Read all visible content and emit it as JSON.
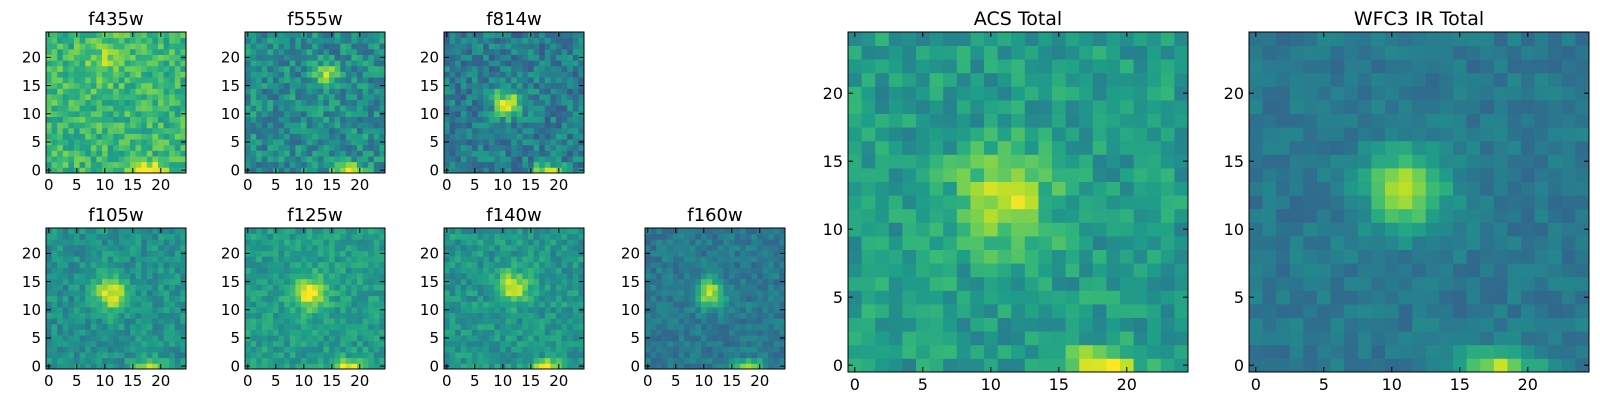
{
  "chart_data": [
    {
      "type": "heatmap",
      "title": "f435w",
      "peak": [
        10,
        20
      ],
      "spread": 3.0,
      "peak_strength": 0.15,
      "base": 0.66,
      "noise": 0.28,
      "xlim": [
        0,
        24
      ],
      "ylim": [
        0,
        24
      ],
      "xticks": [
        {
          "v": 0,
          "label": "0"
        },
        {
          "v": 5,
          "label": "5"
        },
        {
          "v": 10,
          "label": "10"
        },
        {
          "v": 15,
          "label": "15"
        },
        {
          "v": 20,
          "label": "20"
        }
      ],
      "yticks": [
        {
          "v": 0,
          "label": "0"
        },
        {
          "v": 5,
          "label": "5"
        },
        {
          "v": 10,
          "label": "10"
        },
        {
          "v": 15,
          "label": "15"
        },
        {
          "v": 20,
          "label": "20"
        }
      ]
    },
    {
      "type": "heatmap",
      "title": "f555w",
      "peak": [
        14,
        17
      ],
      "spread": 1.4,
      "peak_strength": 0.4,
      "base": 0.48,
      "noise": 0.32,
      "xlim": [
        0,
        24
      ],
      "ylim": [
        0,
        24
      ],
      "xticks": [
        {
          "v": 0,
          "label": "0"
        },
        {
          "v": 5,
          "label": "5"
        },
        {
          "v": 10,
          "label": "10"
        },
        {
          "v": 15,
          "label": "15"
        },
        {
          "v": 20,
          "label": "20"
        }
      ],
      "yticks": [
        {
          "v": 0,
          "label": "0"
        },
        {
          "v": 5,
          "label": "5"
        },
        {
          "v": 10,
          "label": "10"
        },
        {
          "v": 15,
          "label": "15"
        },
        {
          "v": 20,
          "label": "20"
        }
      ]
    },
    {
      "type": "heatmap",
      "title": "f814w",
      "peak": [
        11,
        12
      ],
      "spread": 1.8,
      "peak_strength": 0.5,
      "base": 0.42,
      "noise": 0.3,
      "xlim": [
        0,
        24
      ],
      "ylim": [
        0,
        24
      ],
      "xticks": [
        {
          "v": 0,
          "label": "0"
        },
        {
          "v": 5,
          "label": "5"
        },
        {
          "v": 10,
          "label": "10"
        },
        {
          "v": 15,
          "label": "15"
        },
        {
          "v": 20,
          "label": "20"
        }
      ],
      "yticks": [
        {
          "v": 0,
          "label": "0"
        },
        {
          "v": 5,
          "label": "5"
        },
        {
          "v": 10,
          "label": "10"
        },
        {
          "v": 15,
          "label": "15"
        },
        {
          "v": 20,
          "label": "20"
        }
      ]
    },
    {
      "type": "heatmap",
      "title": "f105w",
      "peak": [
        11,
        13
      ],
      "spread": 2.2,
      "peak_strength": 0.45,
      "base": 0.5,
      "noise": 0.22,
      "xlim": [
        0,
        24
      ],
      "ylim": [
        0,
        24
      ],
      "xticks": [
        {
          "v": 0,
          "label": "0"
        },
        {
          "v": 5,
          "label": "5"
        },
        {
          "v": 10,
          "label": "10"
        },
        {
          "v": 15,
          "label": "15"
        },
        {
          "v": 20,
          "label": "20"
        }
      ],
      "yticks": [
        {
          "v": 0,
          "label": "0"
        },
        {
          "v": 5,
          "label": "5"
        },
        {
          "v": 10,
          "label": "10"
        },
        {
          "v": 15,
          "label": "15"
        },
        {
          "v": 20,
          "label": "20"
        }
      ]
    },
    {
      "type": "heatmap",
      "title": "f125w",
      "peak": [
        11,
        13
      ],
      "spread": 2.0,
      "peak_strength": 0.45,
      "base": 0.55,
      "noise": 0.2,
      "xlim": [
        0,
        24
      ],
      "ylim": [
        0,
        24
      ],
      "xticks": [
        {
          "v": 0,
          "label": "0"
        },
        {
          "v": 5,
          "label": "5"
        },
        {
          "v": 10,
          "label": "10"
        },
        {
          "v": 15,
          "label": "15"
        },
        {
          "v": 20,
          "label": "20"
        }
      ],
      "yticks": [
        {
          "v": 0,
          "label": "0"
        },
        {
          "v": 5,
          "label": "5"
        },
        {
          "v": 10,
          "label": "10"
        },
        {
          "v": 15,
          "label": "15"
        },
        {
          "v": 20,
          "label": "20"
        }
      ]
    },
    {
      "type": "heatmap",
      "title": "f140w",
      "peak": [
        12,
        14
      ],
      "spread": 2.0,
      "peak_strength": 0.42,
      "base": 0.52,
      "noise": 0.22,
      "xlim": [
        0,
        24
      ],
      "ylim": [
        0,
        24
      ],
      "xticks": [
        {
          "v": 0,
          "label": "0"
        },
        {
          "v": 5,
          "label": "5"
        },
        {
          "v": 10,
          "label": "10"
        },
        {
          "v": 15,
          "label": "15"
        },
        {
          "v": 20,
          "label": "20"
        }
      ],
      "yticks": [
        {
          "v": 0,
          "label": "0"
        },
        {
          "v": 5,
          "label": "5"
        },
        {
          "v": 10,
          "label": "10"
        },
        {
          "v": 15,
          "label": "15"
        },
        {
          "v": 20,
          "label": "20"
        }
      ]
    },
    {
      "type": "heatmap",
      "title": "f160w",
      "peak": [
        11,
        13
      ],
      "spread": 1.8,
      "peak_strength": 0.5,
      "base": 0.4,
      "noise": 0.18,
      "xlim": [
        0,
        24
      ],
      "ylim": [
        0,
        24
      ],
      "xticks": [
        {
          "v": 0,
          "label": "0"
        },
        {
          "v": 5,
          "label": "5"
        },
        {
          "v": 10,
          "label": "10"
        },
        {
          "v": 15,
          "label": "15"
        },
        {
          "v": 20,
          "label": "20"
        }
      ],
      "yticks": [
        {
          "v": 0,
          "label": "0"
        },
        {
          "v": 5,
          "label": "5"
        },
        {
          "v": 10,
          "label": "10"
        },
        {
          "v": 15,
          "label": "15"
        },
        {
          "v": 20,
          "label": "20"
        }
      ]
    },
    {
      "type": "heatmap",
      "title": "ACS Total",
      "peak": [
        11,
        12
      ],
      "spread": 2.5,
      "peak_strength": 0.35,
      "base": 0.55,
      "noise": 0.24,
      "xlim": [
        0,
        24
      ],
      "ylim": [
        0,
        24
      ],
      "xticks": [
        {
          "v": 0,
          "label": "0"
        },
        {
          "v": 5,
          "label": "5"
        },
        {
          "v": 10,
          "label": "10"
        },
        {
          "v": 15,
          "label": "15"
        },
        {
          "v": 20,
          "label": "20"
        }
      ],
      "yticks": [
        {
          "v": 0,
          "label": "0"
        },
        {
          "v": 5,
          "label": "5"
        },
        {
          "v": 10,
          "label": "10"
        },
        {
          "v": 15,
          "label": "15"
        },
        {
          "v": 20,
          "label": "20"
        }
      ]
    },
    {
      "type": "heatmap",
      "title": "WFC3 IR Total",
      "peak": [
        11,
        13
      ],
      "spread": 2.0,
      "peak_strength": 0.5,
      "base": 0.4,
      "noise": 0.14,
      "xlim": [
        0,
        24
      ],
      "ylim": [
        0,
        24
      ],
      "xticks": [
        {
          "v": 0,
          "label": "0"
        },
        {
          "v": 5,
          "label": "5"
        },
        {
          "v": 10,
          "label": "10"
        },
        {
          "v": 15,
          "label": "15"
        },
        {
          "v": 20,
          "label": "20"
        }
      ],
      "yticks": [
        {
          "v": 0,
          "label": "0"
        },
        {
          "v": 5,
          "label": "5"
        },
        {
          "v": 10,
          "label": "10"
        },
        {
          "v": 15,
          "label": "15"
        },
        {
          "v": 20,
          "label": "20"
        }
      ]
    }
  ],
  "colormap": [
    "#440154",
    "#482878",
    "#3e4989",
    "#31688e",
    "#26828e",
    "#1f9e89",
    "#35b779",
    "#6ece58",
    "#b5de2b",
    "#fde725"
  ]
}
